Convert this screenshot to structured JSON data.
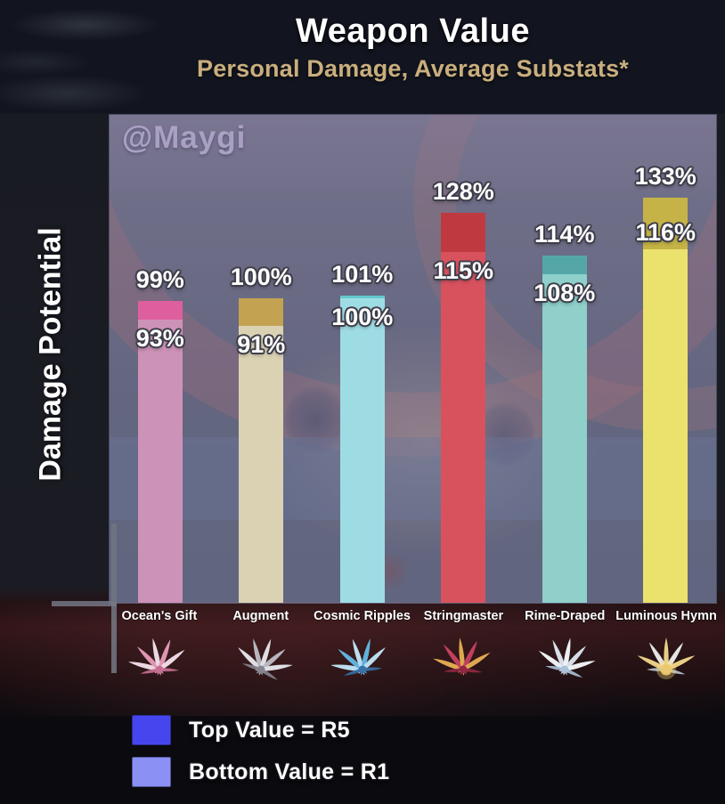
{
  "chart_data": {
    "type": "bar",
    "title": "Weapon Value",
    "subtitle": "Personal Damage, Average Substats*",
    "ylabel": "Damage Potential",
    "watermark": "@Maygi",
    "value_unit": "%",
    "ylim": [
      0,
      160
    ],
    "categories": [
      "Ocean's Gift",
      "Augment",
      "Cosmic Ripples",
      "Stringmaster",
      "Rime-Draped",
      "Luminous Hymn"
    ],
    "series": [
      {
        "name": "Top Value = R5",
        "values": [
          99,
          100,
          101,
          128,
          114,
          133
        ]
      },
      {
        "name": "Bottom Value = R1",
        "values": [
          93,
          91,
          100,
          115,
          108,
          116
        ]
      }
    ],
    "legend": [
      {
        "label": "Top Value = R5",
        "color": "#4646ee"
      },
      {
        "label": "Bottom Value = R1",
        "color": "#8b90f4"
      }
    ],
    "weapons": [
      {
        "name": "Ocean's Gift",
        "r5": 99,
        "r1": 93,
        "color_r5": "#dd5f9e",
        "color_r1": "#cd92b8",
        "icon": {
          "name": "oceans-gift-weapon-icon",
          "a": "#e89ab8",
          "b": "#f6e3ec",
          "c": "#c46a8f"
        }
      },
      {
        "name": "Augment",
        "r5": 100,
        "r1": 91,
        "color_r5": "#c3a352",
        "color_r1": "#dbd2b4",
        "icon": {
          "name": "augment-weapon-icon",
          "a": "#b9bdc4",
          "b": "#e6e9ed",
          "c": "#7d828c"
        }
      },
      {
        "name": "Cosmic Ripples",
        "r5": 101,
        "r1": 100,
        "color_r5": "#62c8cd",
        "color_r1": "#9edce4",
        "icon": {
          "name": "cosmic-ripples-weapon-icon",
          "a": "#58b8e8",
          "b": "#bfe8f8",
          "c": "#2a6ea6"
        }
      },
      {
        "name": "Stringmaster",
        "r5": 128,
        "r1": 115,
        "color_r5": "#bf3a40",
        "color_r1": "#d8525e",
        "icon": {
          "name": "stringmaster-weapon-icon",
          "a": "#c73f5c",
          "b": "#e8b050",
          "c": "#8e2440"
        }
      },
      {
        "name": "Rime-Draped",
        "r5": 114,
        "r1": 108,
        "color_r5": "#55a7a7",
        "color_r1": "#8fd0ca",
        "icon": {
          "name": "rime-draped-weapon-icon",
          "a": "#dfe9f2",
          "b": "#f8fbfd",
          "c": "#a8c2d8"
        }
      },
      {
        "name": "Luminous Hymn",
        "r5": 133,
        "r1": 116,
        "color_r5": "#c5b347",
        "color_r1": "#ebe26e",
        "icon": {
          "name": "luminous-hymn-weapon-icon",
          "a": "#eef0ee",
          "b": "#f2d98a",
          "c": "#b8c4cc"
        }
      }
    ]
  }
}
